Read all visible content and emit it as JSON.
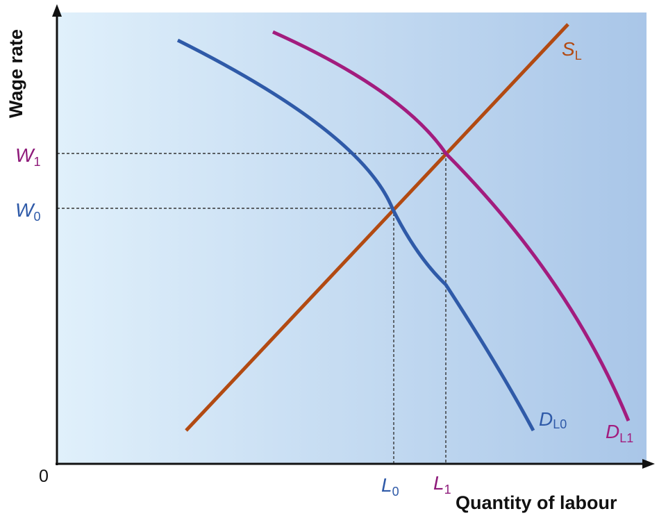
{
  "axes": {
    "y_label": "Wage rate",
    "x_label": "Quantity of labour",
    "origin": "0"
  },
  "levels": {
    "W1": {
      "main": "W",
      "sub": "1",
      "color": "#8e1a7a"
    },
    "W0": {
      "main": "W",
      "sub": "0",
      "color": "#2f5aa8"
    },
    "L0": {
      "main": "L",
      "sub": "0",
      "color": "#2f5aa8"
    },
    "L1": {
      "main": "L",
      "sub": "1",
      "color": "#8e1a7a"
    }
  },
  "curves": {
    "supply": {
      "main": "S",
      "sub": "L",
      "color": "#b24a12"
    },
    "demand0": {
      "main": "D",
      "sub": "L0",
      "color": "#2f5aa8"
    },
    "demand1": {
      "main": "D",
      "sub": "L1",
      "color": "#a21c7e"
    }
  },
  "colors": {
    "background_left": "#e0f0fb",
    "background_right": "#a9c6e8",
    "axis": "#111111",
    "guide": "#333333"
  }
}
